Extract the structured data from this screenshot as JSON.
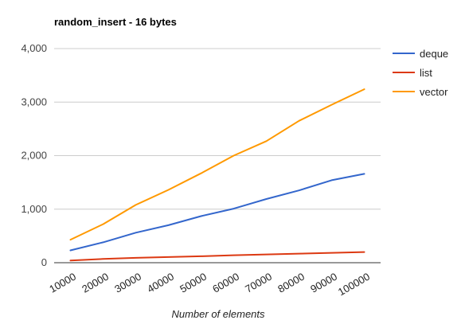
{
  "chart_data": {
    "type": "line",
    "title": "random_insert - 16 bytes",
    "xlabel": "Number of elements",
    "ylabel": "",
    "x": [
      "10000",
      "20000",
      "30000",
      "40000",
      "50000",
      "60000",
      "70000",
      "80000",
      "90000",
      "100000"
    ],
    "ylim": [
      0,
      4000
    ],
    "yticks": [
      "0",
      "1,000",
      "2,000",
      "3,000",
      "4,000"
    ],
    "grid": true,
    "legend_position": "right",
    "series": [
      {
        "name": "deque",
        "color": "#3366cc",
        "values": [
          230,
          380,
          560,
          700,
          870,
          1010,
          1190,
          1350,
          1540,
          1660
        ]
      },
      {
        "name": "list",
        "color": "#dc3912",
        "values": [
          40,
          70,
          90,
          105,
          120,
          140,
          155,
          170,
          185,
          200
        ]
      },
      {
        "name": "vector",
        "color": "#ff9900",
        "values": [
          430,
          720,
          1080,
          1360,
          1670,
          2000,
          2270,
          2650,
          2950,
          3240
        ]
      }
    ]
  }
}
